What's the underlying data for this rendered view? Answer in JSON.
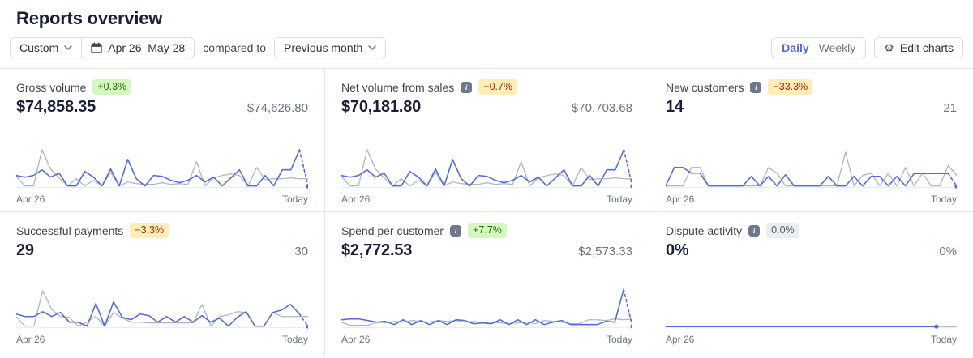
{
  "page": {
    "title": "Reports overview"
  },
  "toolbar": {
    "range_type": "Custom",
    "date_range": "Apr 26–May 28",
    "compared_to_label": "compared to",
    "comparison": "Previous month",
    "daily_label": "Daily",
    "weekly_label": "Weekly",
    "selected_granularity": "Daily",
    "edit_charts_label": "Edit charts"
  },
  "colors": {
    "current": "#556cd6",
    "previous": "#aeb5c1",
    "baseline": "#e6ebf1",
    "accent": "#5469d4",
    "positive_bg": "#d7f7c2",
    "positive_text": "#217005",
    "negative_bg": "#fcedb9",
    "negative_text": "#a82c00",
    "neutral_bg": "#ebeef1",
    "neutral_text": "#545969"
  },
  "cards": [
    {
      "title": "Gross volume",
      "badge": {
        "text": "+0.3%",
        "tone": "positive"
      },
      "value": "$74,858.35",
      "comparison": "$74,626.80",
      "x_start": "Apr 26",
      "x_end_label": "Today",
      "chart": {
        "type": "line",
        "series": [
          {
            "role": "previous",
            "values": [
              28,
              4,
              4,
              94,
              46,
              24,
              4,
              22,
              4,
              18,
              4,
              38,
              4,
              14,
              10,
              8,
              8,
              12,
              8,
              10,
              8,
              64,
              4,
              24,
              30,
              34,
              30,
              4,
              50,
              20,
              22,
              22,
              24,
              22,
              22
            ]
          },
          {
            "role": "current",
            "values": [
              30,
              26,
              30,
              44,
              26,
              36,
              4,
              4,
              40,
              26,
              4,
              46,
              4,
              70,
              22,
              4,
              30,
              28,
              18,
              12,
              18,
              30,
              14,
              26,
              4,
              24,
              44,
              4,
              4,
              30,
              4,
              44,
              44,
              94,
              3
            ],
            "dash_from": 33,
            "end_dot": true
          }
        ]
      }
    },
    {
      "title": "Net volume from sales",
      "badge": {
        "text": "−0.7%",
        "tone": "negative"
      },
      "value": "$70,181.80",
      "comparison": "$70,703.68",
      "x_start": "Apr 26",
      "x_end_label": "Today",
      "chart": {
        "type": "line",
        "series": [
          {
            "role": "previous",
            "values": [
              28,
              4,
              4,
              94,
              46,
              24,
              4,
              22,
              4,
              18,
              4,
              38,
              4,
              14,
              10,
              8,
              8,
              12,
              8,
              10,
              8,
              64,
              4,
              24,
              30,
              34,
              30,
              4,
              50,
              20,
              22,
              22,
              24,
              22,
              22
            ]
          },
          {
            "role": "current",
            "values": [
              30,
              26,
              30,
              44,
              26,
              36,
              4,
              4,
              40,
              26,
              4,
              46,
              4,
              70,
              22,
              4,
              30,
              28,
              18,
              12,
              18,
              30,
              14,
              26,
              4,
              24,
              44,
              4,
              4,
              30,
              4,
              44,
              44,
              94,
              3
            ],
            "dash_from": 33,
            "end_dot": true
          }
        ]
      }
    },
    {
      "title": "New customers",
      "badge": {
        "text": "−33.3%",
        "tone": "negative"
      },
      "value": "14",
      "comparison": "21",
      "x_start": "Apr 26",
      "x_end_label": "Today",
      "chart": {
        "type": "line",
        "series": [
          {
            "role": "previous",
            "values": [
              4,
              4,
              4,
              50,
              50,
              4,
              4,
              4,
              4,
              4,
              4,
              4,
              50,
              36,
              4,
              4,
              4,
              4,
              4,
              4,
              4,
              88,
              4,
              30,
              36,
              4,
              36,
              4,
              50,
              4,
              36,
              4,
              4,
              55,
              30
            ]
          },
          {
            "role": "current",
            "values": [
              4,
              50,
              50,
              36,
              36,
              4,
              4,
              4,
              4,
              4,
              28,
              4,
              28,
              4,
              32,
              4,
              4,
              4,
              4,
              28,
              4,
              4,
              28,
              4,
              28,
              28,
              4,
              28,
              4,
              35,
              35,
              35,
              35,
              35,
              3
            ],
            "dash_from": 33,
            "end_dot": true
          }
        ]
      }
    },
    {
      "title": "Successful payments",
      "badge": {
        "text": "−3.3%",
        "tone": "negative"
      },
      "value": "29",
      "comparison": "30",
      "x_start": "Apr 26",
      "x_end_label": "Today",
      "chart": {
        "type": "line",
        "series": [
          {
            "role": "previous",
            "values": [
              28,
              4,
              4,
              92,
              46,
              28,
              26,
              4,
              14,
              28,
              4,
              38,
              24,
              14,
              14,
              12,
              12,
              12,
              12,
              12,
              12,
              58,
              4,
              28,
              32,
              40,
              38,
              4,
              4,
              38,
              28,
              28,
              28,
              28
            ]
          },
          {
            "role": "current",
            "values": [
              34,
              28,
              28,
              40,
              28,
              38,
              14,
              14,
              4,
              60,
              4,
              64,
              26,
              20,
              34,
              30,
              14,
              28,
              14,
              28,
              14,
              30,
              14,
              24,
              4,
              26,
              40,
              4,
              4,
              38,
              44,
              58,
              35,
              3
            ],
            "dash_from": 32,
            "end_dot": true
          }
        ]
      }
    },
    {
      "title": "Spend per customer",
      "badge": {
        "text": "+7.7%",
        "tone": "positive"
      },
      "value": "$2,772.53",
      "comparison": "$2,573.33",
      "x_start": "Apr 26",
      "x_end_label": "Today",
      "chart": {
        "type": "line",
        "series": [
          {
            "role": "previous",
            "values": [
              14,
              6,
              6,
              6,
              14,
              12,
              16,
              14,
              18,
              16,
              14,
              18,
              16,
              18,
              14,
              16,
              12,
              14,
              12,
              10,
              12,
              14,
              10,
              18,
              16,
              14,
              10,
              10,
              20,
              20,
              18,
              22,
              20,
              22
            ]
          },
          {
            "role": "current",
            "values": [
              20,
              22,
              22,
              18,
              14,
              16,
              8,
              20,
              8,
              18,
              8,
              18,
              8,
              20,
              18,
              10,
              12,
              10,
              20,
              8,
              20,
              8,
              20,
              8,
              14,
              18,
              8,
              8,
              8,
              8,
              16,
              14,
              95,
              3
            ],
            "dash_from": 32,
            "end_dot": true
          }
        ]
      }
    },
    {
      "title": "Dispute activity",
      "badge": {
        "text": "0.0%",
        "tone": "neutral"
      },
      "value": "0%",
      "comparison": "0%",
      "x_start": "Apr 26",
      "x_end_label": "Today",
      "chart": {
        "type": "line",
        "series": [
          {
            "role": "previous",
            "values": [
              3,
              3
            ],
            "x_end": 100
          },
          {
            "role": "current",
            "values": [
              3,
              3
            ],
            "x_end": 93,
            "end_dot": true
          }
        ]
      }
    }
  ]
}
